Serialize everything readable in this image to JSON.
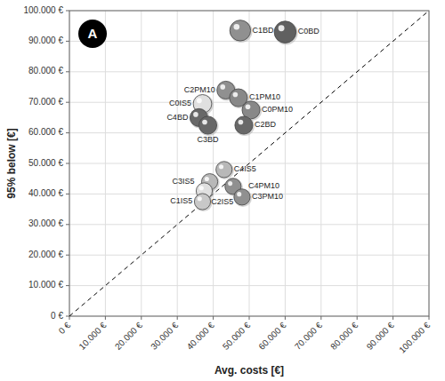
{
  "chart_data": {
    "type": "scatter",
    "xlabel": "Avg. costs [€]",
    "ylabel": "95% below [€]",
    "annotations": [
      "A"
    ],
    "labels": [
      "C0BD",
      "C1BD",
      "C0IS5",
      "C2PM10",
      "C1PM10",
      "C0PM10",
      "C4BD",
      "C3BD",
      "C2BD",
      "C4IS5",
      "C3IS5",
      "C2IS5",
      "C4PM10",
      "C1IS5",
      "C3PM10"
    ],
    "x": [
      60000,
      47500,
      37000,
      43500,
      47000,
      50500,
      36000,
      38500,
      48500,
      43000,
      39000,
      37500,
      45500,
      37000,
      48000
    ],
    "values": [
      93000,
      93500,
      69500,
      74000,
      71500,
      67500,
      65000,
      62500,
      62500,
      48000,
      44000,
      41000,
      42500,
      37500,
      39000
    ],
    "sizes": [
      420,
      380,
      300,
      280,
      280,
      280,
      280,
      280,
      280,
      230,
      230,
      230,
      230,
      230,
      230
    ],
    "colors": [
      "#606060",
      "#909090",
      "#e0e0e0",
      "#909090",
      "#888888",
      "#888888",
      "#686868",
      "#686868",
      "#686868",
      "#b8b8b8",
      "#b8b8b8",
      "#e0e0e0",
      "#909090",
      "#c8c8c8",
      "#909090"
    ],
    "xlim": [
      0,
      100000
    ],
    "ylim": [
      0,
      100000
    ],
    "xticks": [
      {
        "value": 0,
        "label": "0 €"
      },
      {
        "value": 10000,
        "label": "10.000 €"
      },
      {
        "value": 20000,
        "label": "20.000 €"
      },
      {
        "value": 30000,
        "label": "30.000 €"
      },
      {
        "value": 40000,
        "label": "40.000 €"
      },
      {
        "value": 50000,
        "label": "50.000 €"
      },
      {
        "value": 60000,
        "label": "60.000 €"
      },
      {
        "value": 70000,
        "label": "70.000 €"
      },
      {
        "value": 80000,
        "label": "80.000 €"
      },
      {
        "value": 90000,
        "label": "90.000 €"
      },
      {
        "value": 100000,
        "label": "100.000 €"
      }
    ],
    "yticks": [
      {
        "value": 0,
        "label": "0 €"
      },
      {
        "value": 10000,
        "label": "10.000 €"
      },
      {
        "value": 20000,
        "label": "20.000 €"
      },
      {
        "value": 30000,
        "label": "30.000 €"
      },
      {
        "value": 40000,
        "label": "40.000 €"
      },
      {
        "value": 50000,
        "label": "50.000 €"
      },
      {
        "value": 60000,
        "label": "60.000 €"
      },
      {
        "value": 70000,
        "label": "70.000 €"
      },
      {
        "value": 80000,
        "label": "80.000 €"
      },
      {
        "value": 90000,
        "label": "90.000 €"
      },
      {
        "value": 100000,
        "label": "100.000 €"
      }
    ],
    "grid": true
  }
}
